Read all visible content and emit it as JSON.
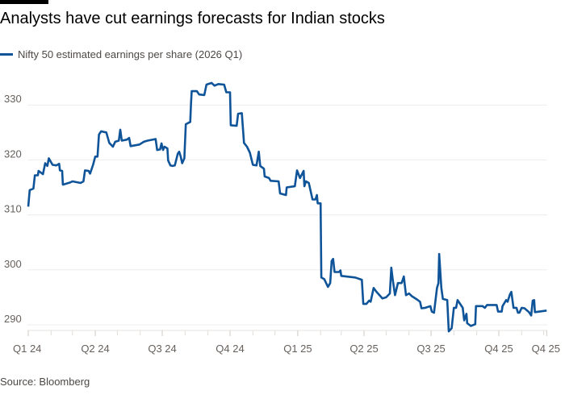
{
  "chart_data": {
    "type": "line",
    "title": "Analysts have cut earnings forecasts for Indian stocks",
    "source": "Source: Bloomberg",
    "xlabel": "",
    "ylabel": "",
    "ylim": [
      290,
      330
    ],
    "yticks": [
      290,
      300,
      310,
      320,
      330
    ],
    "xticks": [
      {
        "label": "Q1 24",
        "date": "2024-01-01"
      },
      {
        "label": "Q2 24",
        "date": "2024-04-01"
      },
      {
        "label": "Q3 24",
        "date": "2024-07-01"
      },
      {
        "label": "Q4 24",
        "date": "2024-10-01"
      },
      {
        "label": "Q1 25",
        "date": "2025-01-01"
      },
      {
        "label": "Q2 25",
        "date": "2025-04-01"
      },
      {
        "label": "Q3 25",
        "date": "2025-07-01"
      },
      {
        "label": "Q4 25",
        "date": "2025-10-01"
      },
      {
        "label": "Q4 25",
        "date": "2025-12-05"
      }
    ],
    "grid": true,
    "legend_position": "top-left",
    "series": [
      {
        "name": "Nifty 50 estimated earnings per share (2026 Q1)",
        "color": "#0f5499",
        "x": [
          "2024-01-01",
          "2024-01-03",
          "2024-01-08",
          "2024-01-10",
          "2024-01-14",
          "2024-01-15",
          "2024-01-21",
          "2024-01-24",
          "2024-01-27",
          "2024-01-29",
          "2024-02-03",
          "2024-02-08",
          "2024-02-12",
          "2024-02-13",
          "2024-02-16",
          "2024-02-17",
          "2024-02-27",
          "2024-03-01",
          "2024-03-12",
          "2024-03-16",
          "2024-03-18",
          "2024-03-23",
          "2024-03-25",
          "2024-03-29",
          "2024-04-01",
          "2024-04-04",
          "2024-04-06",
          "2024-04-09",
          "2024-04-16",
          "2024-04-20",
          "2024-04-25",
          "2024-04-28",
          "2024-05-03",
          "2024-05-05",
          "2024-05-07",
          "2024-05-14",
          "2024-05-17",
          "2024-05-19",
          "2024-05-31",
          "2024-06-06",
          "2024-06-11",
          "2024-06-22",
          "2024-06-24",
          "2024-06-28",
          "2024-06-30",
          "2024-07-02",
          "2024-07-04",
          "2024-07-08",
          "2024-07-09",
          "2024-07-12",
          "2024-07-15",
          "2024-07-18",
          "2024-07-22",
          "2024-07-24",
          "2024-07-26",
          "2024-07-28",
          "2024-07-31",
          "2024-08-02",
          "2024-08-08",
          "2024-08-09",
          "2024-08-10",
          "2024-08-17",
          "2024-08-20",
          "2024-08-27",
          "2024-08-30",
          "2024-09-06",
          "2024-09-10",
          "2024-09-15",
          "2024-09-23",
          "2024-09-26",
          "2024-10-01",
          "2024-10-02",
          "2024-10-10",
          "2024-10-12",
          "2024-10-17",
          "2024-10-20",
          "2024-10-24",
          "2024-10-28",
          "2024-11-01",
          "2024-11-06",
          "2024-11-09",
          "2024-11-11",
          "2024-11-16",
          "2024-11-17",
          "2024-11-23",
          "2024-11-25",
          "2024-12-06",
          "2024-12-08",
          "2024-12-16",
          "2024-12-17",
          "2024-12-28",
          "2024-12-31",
          "2025-01-04",
          "2025-01-09",
          "2025-01-10",
          "2025-01-12",
          "2025-01-16",
          "2025-01-21",
          "2025-01-25",
          "2025-01-27",
          "2025-01-28",
          "2025-02-01",
          "2025-02-02",
          "2025-02-06",
          "2025-02-11",
          "2025-02-14",
          "2025-02-16",
          "2025-02-18",
          "2025-02-20",
          "2025-02-26",
          "2025-02-28",
          "2025-03-01",
          "2025-03-20",
          "2025-03-29",
          "2025-03-31",
          "2025-04-04",
          "2025-04-08",
          "2025-04-10",
          "2025-04-14",
          "2025-04-18",
          "2025-04-26",
          "2025-05-01",
          "2025-05-06",
          "2025-05-08",
          "2025-05-10",
          "2025-05-13",
          "2025-05-17",
          "2025-05-22",
          "2025-05-25",
          "2025-05-28",
          "2025-06-01",
          "2025-06-05",
          "2025-06-12",
          "2025-06-16",
          "2025-06-18",
          "2025-06-23",
          "2025-06-30",
          "2025-07-02",
          "2025-07-05",
          "2025-07-09",
          "2025-07-11",
          "2025-07-12",
          "2025-07-15",
          "2025-07-17",
          "2025-07-23",
          "2025-07-25",
          "2025-07-29",
          "2025-08-01",
          "2025-08-04",
          "2025-08-06",
          "2025-08-09",
          "2025-08-13",
          "2025-08-15",
          "2025-08-18",
          "2025-08-19",
          "2025-08-24",
          "2025-08-30",
          "2025-08-31",
          "2025-09-09",
          "2025-09-12",
          "2025-09-15",
          "2025-09-28",
          "2025-09-30",
          "2025-10-05",
          "2025-10-06",
          "2025-10-11",
          "2025-10-13",
          "2025-10-16",
          "2025-10-18",
          "2025-10-21",
          "2025-10-25",
          "2025-10-27",
          "2025-10-29",
          "2025-11-01",
          "2025-11-05",
          "2025-11-11",
          "2025-11-14",
          "2025-11-16",
          "2025-11-18",
          "2025-11-19",
          "2025-11-25",
          "2025-12-05"
        ],
        "values": [
          311.5,
          314.5,
          314.8,
          317.2,
          317.2,
          318.0,
          317.4,
          319.4,
          318.9,
          320.3,
          319.1,
          319.0,
          319.3,
          318.1,
          318.0,
          315.5,
          315.9,
          316.1,
          315.8,
          316.1,
          318.1,
          318.0,
          317.5,
          319.1,
          320.6,
          320.6,
          324.6,
          325.2,
          325.0,
          323.1,
          322.4,
          323.3,
          323.5,
          325.5,
          323.5,
          323.7,
          324.0,
          322.5,
          322.8,
          323.3,
          323.5,
          323.8,
          321.8,
          321.9,
          323.0,
          321.8,
          322.4,
          322.1,
          319.9,
          319.0,
          318.9,
          319.0,
          321.1,
          321.5,
          320.6,
          319.4,
          320.3,
          326.5,
          326.9,
          330.1,
          332.5,
          332.5,
          331.9,
          331.8,
          333.7,
          334.0,
          333.5,
          333.8,
          333.7,
          332.3,
          332.3,
          326.3,
          326.2,
          328.4,
          328.5,
          323.1,
          322.4,
          321.3,
          319.1,
          319.0,
          321.5,
          318.9,
          318.4,
          317.0,
          316.7,
          316.2,
          316.1,
          313.9,
          313.6,
          315.0,
          315.2,
          318.1,
          316.7,
          318.0,
          315.2,
          316.1,
          315.8,
          312.8,
          312.8,
          313.6,
          312.1,
          312.1,
          298.6,
          298.3,
          296.9,
          297.6,
          301.6,
          302.0,
          299.6,
          299.6,
          299.9,
          298.9,
          298.6,
          298.2,
          293.8,
          293.8,
          294.4,
          294.2,
          296.7,
          296.0,
          294.8,
          295.0,
          295.7,
          300.4,
          298.2,
          295.4,
          297.6,
          297.6,
          298.8,
          295.4,
          295.7,
          295.2,
          294.6,
          294.2,
          293.0,
          293.1,
          293.4,
          292.4,
          292.2,
          296.7,
          297.6,
          302.9,
          296.7,
          294.7,
          294.5,
          288.8,
          289.4,
          293.1,
          293.1,
          294.5,
          293.9,
          293.1,
          290.8,
          292.0,
          290.3,
          289.8,
          290.1,
          293.4,
          293.4,
          293.1,
          293.6,
          293.6,
          292.4,
          292.4,
          293.4,
          294.5,
          294.2,
          295.5,
          296.0,
          293.1,
          293.1,
          292.2,
          292.2,
          293.1,
          293.0,
          292.3,
          291.7,
          294.4,
          294.5,
          292.3,
          292.4,
          292.6
        ]
      }
    ]
  }
}
